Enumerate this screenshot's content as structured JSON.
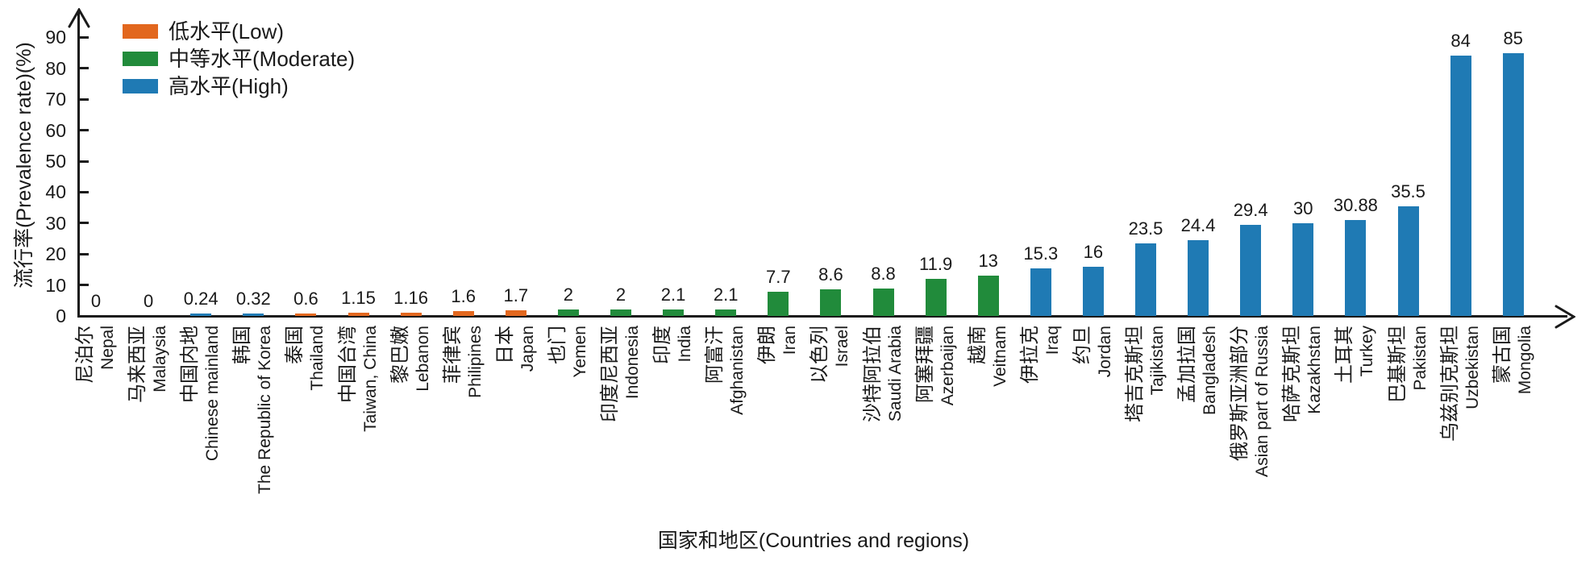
{
  "chart_data": {
    "type": "bar",
    "title": "",
    "ylabel": "流行率(Prevalence rate)(%)",
    "xlabel": "国家和地区(Countries and regions)",
    "ylim": [
      0,
      90
    ],
    "yticks": [
      0,
      10,
      20,
      30,
      40,
      50,
      60,
      70,
      80,
      90
    ],
    "grid": false,
    "legend_position": "top-left",
    "colors": {
      "low": "#E2671E",
      "moderate": "#218B3B",
      "high": "#1F7AB4"
    },
    "legend": [
      {
        "label": "低水平(Low)",
        "level": "low",
        "color": "#E2671E"
      },
      {
        "label": "中等水平(Moderate)",
        "level": "moderate",
        "color": "#218B3B"
      },
      {
        "label": "高水平(High)",
        "level": "high",
        "color": "#1F7AB4"
      }
    ],
    "bars": [
      {
        "cn": "尼泊尔",
        "en": "Nepal",
        "value": 0,
        "value_label": "0",
        "level": null
      },
      {
        "cn": "马来西亚",
        "en": "Malaysia",
        "value": 0,
        "value_label": "0",
        "level": null
      },
      {
        "cn": "中国内地",
        "en": "Chinese mainland",
        "value": 0.24,
        "value_label": "0.24",
        "level": "high"
      },
      {
        "cn": "韩国",
        "en": "The Republic of Korea",
        "value": 0.32,
        "value_label": "0.32",
        "level": "high"
      },
      {
        "cn": "泰国",
        "en": "Thailand",
        "value": 0.6,
        "value_label": "0.6",
        "level": "low"
      },
      {
        "cn": "中国台湾",
        "en": "Taiwan, China",
        "value": 1.15,
        "value_label": "1.15",
        "level": "low"
      },
      {
        "cn": "黎巴嫩",
        "en": "Lebanon",
        "value": 1.16,
        "value_label": "1.16",
        "level": "low"
      },
      {
        "cn": "菲律宾",
        "en": "Philipines",
        "value": 1.6,
        "value_label": "1.6",
        "level": "low"
      },
      {
        "cn": "日本",
        "en": "Japan",
        "value": 1.7,
        "value_label": "1.7",
        "level": "low"
      },
      {
        "cn": "也门",
        "en": "Yemen",
        "value": 2,
        "value_label": "2",
        "level": "moderate"
      },
      {
        "cn": "印度尼西亚",
        "en": "Indonesia",
        "value": 2,
        "value_label": "2",
        "level": "moderate"
      },
      {
        "cn": "印度",
        "en": "India",
        "value": 2.1,
        "value_label": "2.1",
        "level": "moderate"
      },
      {
        "cn": "阿富汗",
        "en": "Afghanistan",
        "value": 2.1,
        "value_label": "2.1",
        "level": "moderate"
      },
      {
        "cn": "伊朗",
        "en": "Iran",
        "value": 7.7,
        "value_label": "7.7",
        "level": "moderate"
      },
      {
        "cn": "以色列",
        "en": "Israel",
        "value": 8.6,
        "value_label": "8.6",
        "level": "moderate"
      },
      {
        "cn": "沙特阿拉伯",
        "en": "Saudi Arabia",
        "value": 8.8,
        "value_label": "8.8",
        "level": "moderate"
      },
      {
        "cn": "阿塞拜疆",
        "en": "Azerbaijan",
        "value": 11.9,
        "value_label": "11.9",
        "level": "moderate"
      },
      {
        "cn": "越南",
        "en": "Veitnam",
        "value": 13,
        "value_label": "13",
        "level": "moderate"
      },
      {
        "cn": "伊拉克",
        "en": "Iraq",
        "value": 15.3,
        "value_label": "15.3",
        "level": "high"
      },
      {
        "cn": "约旦",
        "en": "Jordan",
        "value": 16,
        "value_label": "16",
        "level": "high"
      },
      {
        "cn": "塔吉克斯坦",
        "en": "Tajikistan",
        "value": 23.5,
        "value_label": "23.5",
        "level": "high"
      },
      {
        "cn": "孟加拉国",
        "en": "Bangladesh",
        "value": 24.4,
        "value_label": "24.4",
        "level": "high"
      },
      {
        "cn": "俄罗斯亚洲部分",
        "en": "Asian part of Russia",
        "value": 29.4,
        "value_label": "29.4",
        "level": "high"
      },
      {
        "cn": "哈萨克斯坦",
        "en": "Kazakhstan",
        "value": 30,
        "value_label": "30",
        "level": "high"
      },
      {
        "cn": "土耳其",
        "en": "Turkey",
        "value": 30.88,
        "value_label": "30.88",
        "level": "high"
      },
      {
        "cn": "巴基斯坦",
        "en": "Pakistan",
        "value": 35.5,
        "value_label": "35.5",
        "level": "high"
      },
      {
        "cn": "乌兹别克斯坦",
        "en": "Uzbekistan",
        "value": 84,
        "value_label": "84",
        "level": "high"
      },
      {
        "cn": "蒙古国",
        "en": "Mongolia",
        "value": 85,
        "value_label": "85",
        "level": "high"
      }
    ]
  }
}
